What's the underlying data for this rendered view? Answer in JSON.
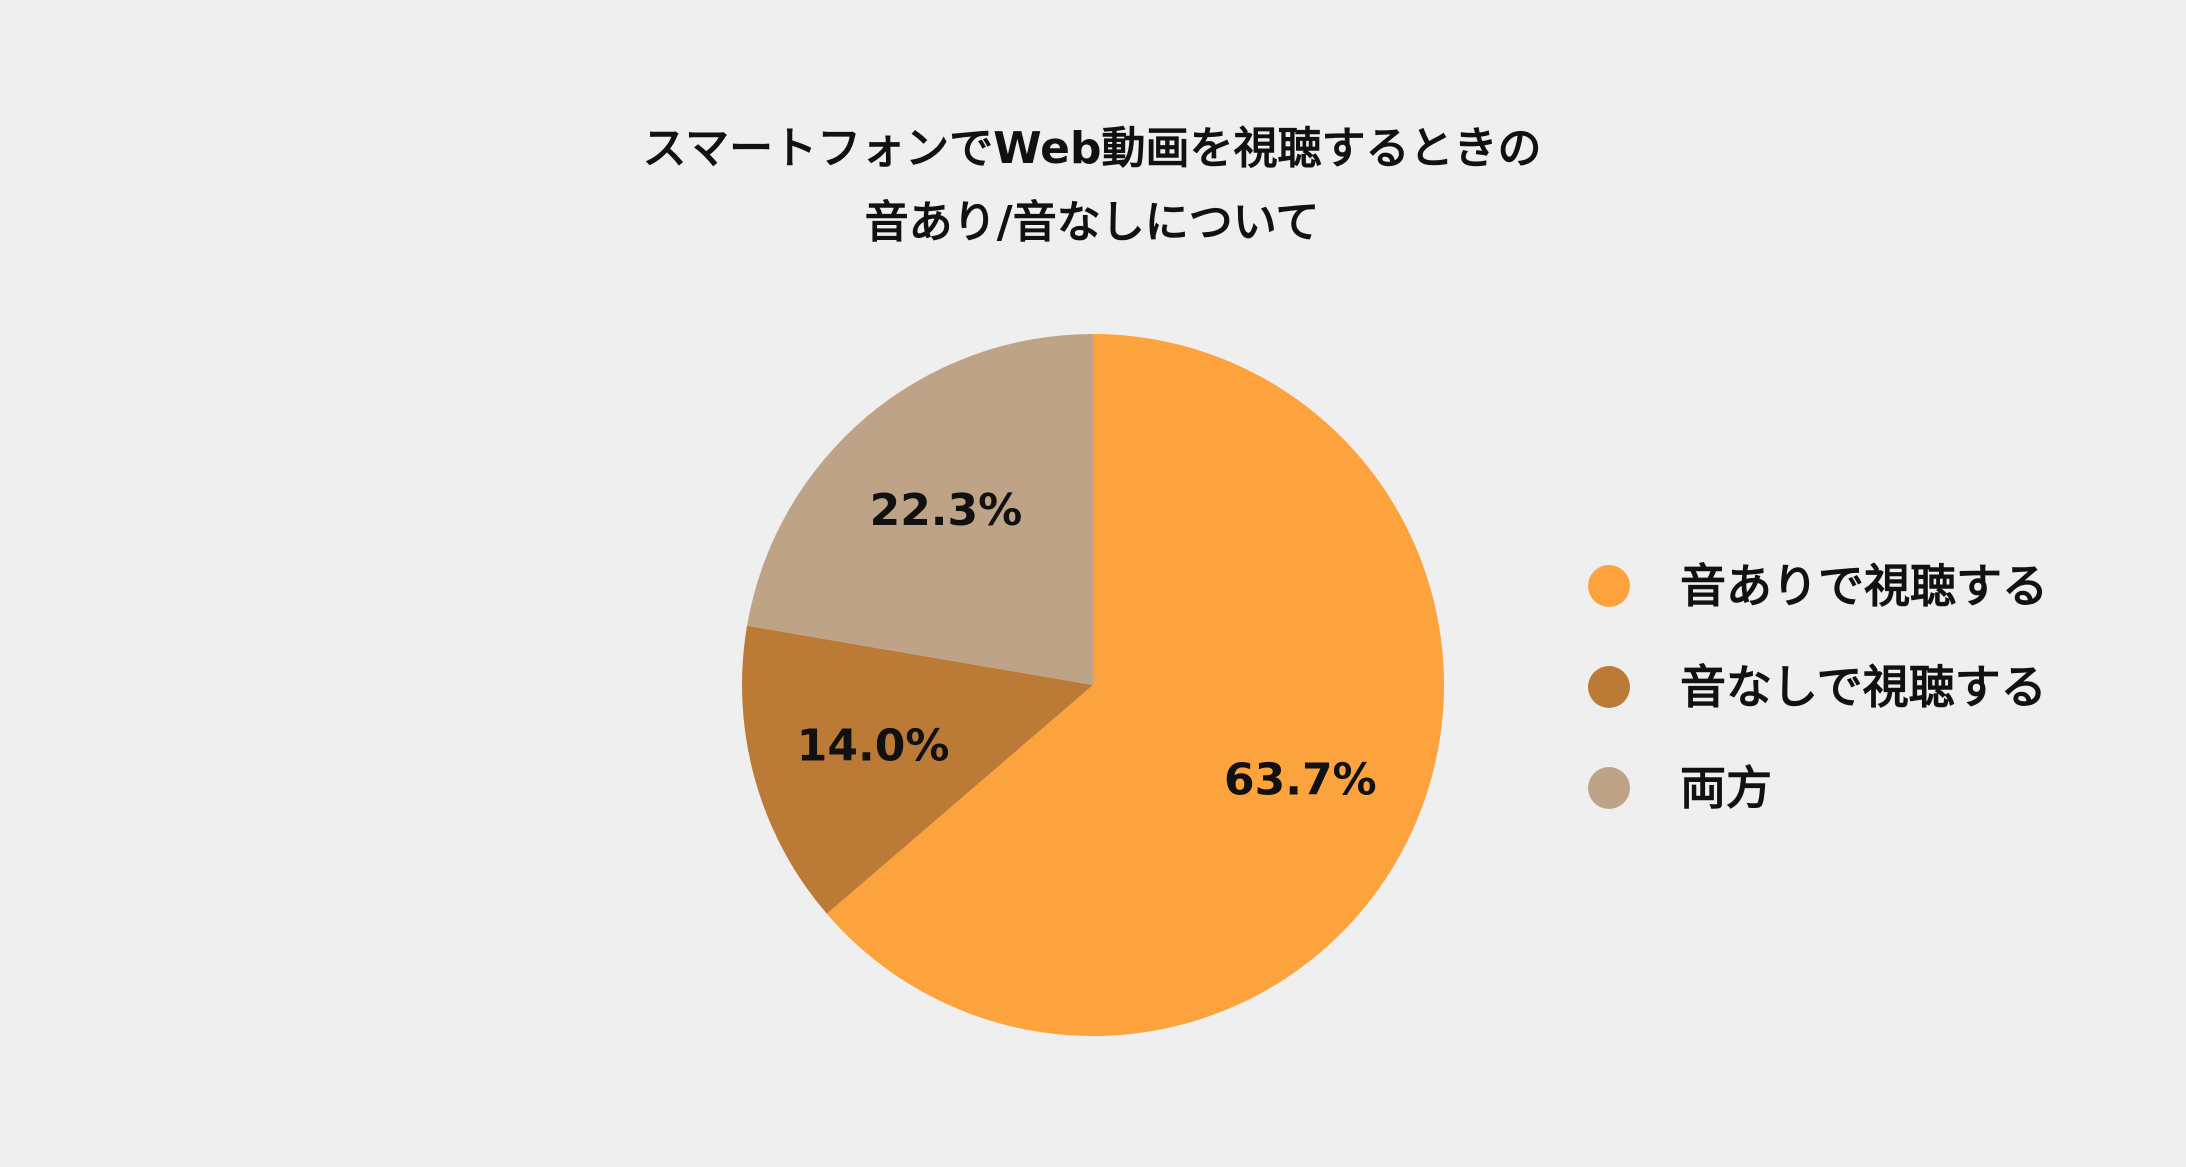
{
  "chart_data": {
    "type": "pie",
    "title_lines": [
      "スマートフォンでWeb動画を視聴するときの",
      "音あり/音なしについて"
    ],
    "slices": [
      {
        "label": "音ありで視聴する",
        "value": 63.7,
        "display": "63.7%",
        "color": "#fca33e"
      },
      {
        "label": "音なしで視聴する",
        "value": 14.0,
        "display": "14.0%",
        "color": "#bb7b36"
      },
      {
        "label": "両方",
        "value": 22.3,
        "display": "22.3%",
        "color": "#bfa386"
      }
    ],
    "legend_position": "right",
    "start_angle": "top",
    "direction": "clockwise"
  }
}
